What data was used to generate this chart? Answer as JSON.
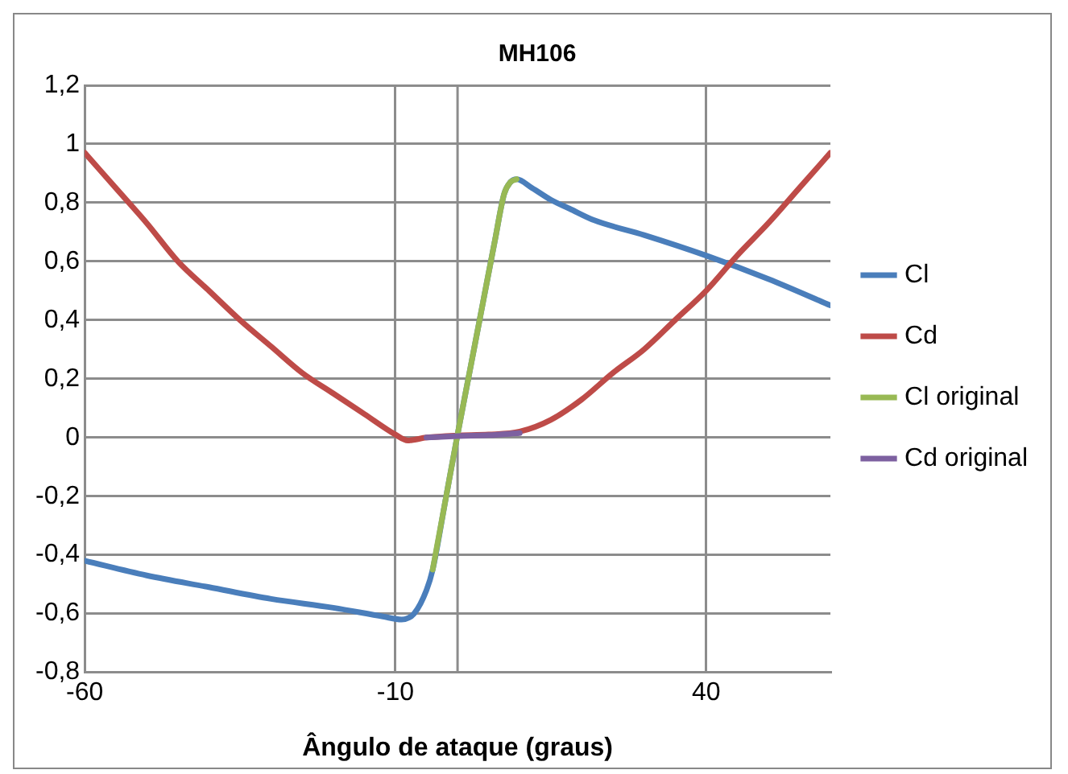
{
  "chart_data": {
    "type": "line",
    "title": "MH106",
    "xlabel": "Ângulo de ataque (graus)",
    "xlim": [
      -60,
      60
    ],
    "xticks": [
      -60,
      -10,
      40
    ],
    "ylim": [
      -0.8,
      1.2
    ],
    "yticks": [
      {
        "value": -0.8,
        "label": "-0,8"
      },
      {
        "value": -0.6,
        "label": "-0,6"
      },
      {
        "value": -0.4,
        "label": "-0,4"
      },
      {
        "value": -0.2,
        "label": "-0,2"
      },
      {
        "value": 0,
        "label": "0"
      },
      {
        "value": 0.2,
        "label": "0,2"
      },
      {
        "value": 0.4,
        "label": "0,4"
      },
      {
        "value": 0.6,
        "label": "0,6"
      },
      {
        "value": 0.8,
        "label": "0,8"
      },
      {
        "value": 1,
        "label": "1"
      },
      {
        "value": 1.2,
        "label": "1,2"
      }
    ],
    "grid": true,
    "legend": "right",
    "ref_lines": [
      {
        "axis": "x",
        "value": 0
      }
    ],
    "marker": "none",
    "line_style": "solid",
    "series": [
      {
        "name": "Cl",
        "color": "#4a7ebb",
        "x": [
          -60,
          -50,
          -40,
          -30,
          -20,
          -12,
          -9,
          -7,
          -5,
          -4,
          -2,
          0,
          2,
          4,
          6,
          7.5,
          8.5,
          9.5,
          12,
          15,
          18,
          22,
          30,
          40,
          50,
          60
        ],
        "values": [
          -0.42,
          -0.47,
          -0.51,
          -0.55,
          -0.58,
          -0.61,
          -0.62,
          -0.6,
          -0.52,
          -0.45,
          -0.22,
          0.01,
          0.23,
          0.45,
          0.67,
          0.83,
          0.87,
          0.88,
          0.85,
          0.81,
          0.78,
          0.74,
          0.69,
          0.62,
          0.54,
          0.45
        ]
      },
      {
        "name": "Cd",
        "color": "#be4b48",
        "x": [
          -60,
          -55,
          -50,
          -45,
          -40,
          -35,
          -30,
          -25,
          -20,
          -15,
          -10,
          -8,
          -5,
          0,
          5,
          10,
          15,
          20,
          25,
          30,
          35,
          40,
          45,
          50,
          55,
          60
        ],
        "values": [
          0.97,
          0.85,
          0.73,
          0.6,
          0.5,
          0.4,
          0.31,
          0.22,
          0.15,
          0.08,
          0.01,
          -0.01,
          0,
          0.007,
          0.01,
          0.02,
          0.06,
          0.13,
          0.22,
          0.3,
          0.4,
          0.5,
          0.62,
          0.73,
          0.85,
          0.97
        ]
      },
      {
        "name": "Cl original",
        "color": "#98b954",
        "x": [
          -4,
          -2,
          0,
          2,
          4,
          6,
          7.5,
          8.5,
          9.5
        ],
        "values": [
          -0.45,
          -0.22,
          0.01,
          0.23,
          0.45,
          0.67,
          0.83,
          0.87,
          0.88
        ]
      },
      {
        "name": "Cd original",
        "color": "#7d60a0",
        "x": [
          -5,
          0,
          5,
          10
        ],
        "values": [
          0,
          0.005,
          0.008,
          0.015
        ]
      }
    ]
  }
}
